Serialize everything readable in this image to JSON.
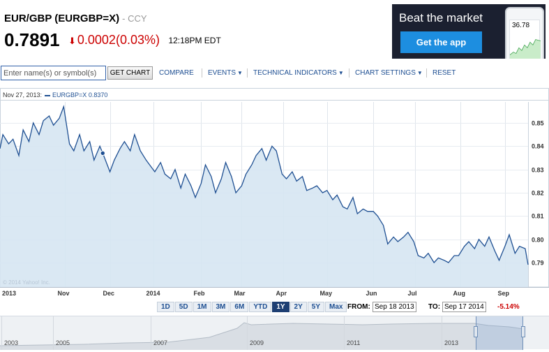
{
  "header": {
    "symbol_title": "EUR/GBP (EURGBP=X)",
    "exchange": "- CCY",
    "price": "0.7891",
    "change": "0.0002(0.03%)",
    "change_direction": "down",
    "time": "12:18PM EDT",
    "down_color": "#cc0000"
  },
  "ad": {
    "title": "Beat the market",
    "button": "Get the app",
    "phone_value": "36.78"
  },
  "toolbar": {
    "search_placeholder": "Enter name(s) or symbol(s)",
    "get_chart": "GET CHART",
    "compare": "COMPARE",
    "events": "EVENTS",
    "technical_indicators": "TECHNICAL INDICATORS",
    "chart_settings": "CHART SETTINGS",
    "reset": "RESET",
    "link_color": "#1e4f92"
  },
  "chart_legend": {
    "date": "Nov 27, 2013:",
    "series_label": "EURGBP=X 0.8370"
  },
  "watermark": "© 2014 Yahoo! Inc.",
  "chart_data": {
    "type": "area",
    "series": [
      {
        "name": "EURGBP=X",
        "color": "#1e4f92",
        "fill": "#d6e6f2",
        "points": [
          [
            "2013-09-17",
            0.839
          ],
          [
            "2013-09-19",
            0.845
          ],
          [
            "2013-09-23",
            0.841
          ],
          [
            "2013-09-26",
            0.843
          ],
          [
            "2013-09-30",
            0.836
          ],
          [
            "2013-10-03",
            0.847
          ],
          [
            "2013-10-07",
            0.842
          ],
          [
            "2013-10-10",
            0.85
          ],
          [
            "2013-10-14",
            0.845
          ],
          [
            "2013-10-17",
            0.851
          ],
          [
            "2013-10-21",
            0.853
          ],
          [
            "2013-10-24",
            0.849
          ],
          [
            "2013-10-28",
            0.852
          ],
          [
            "2013-10-31",
            0.857
          ],
          [
            "2013-11-04",
            0.841
          ],
          [
            "2013-11-07",
            0.838
          ],
          [
            "2013-11-11",
            0.845
          ],
          [
            "2013-11-14",
            0.838
          ],
          [
            "2013-11-18",
            0.842
          ],
          [
            "2013-11-21",
            0.834
          ],
          [
            "2013-11-25",
            0.84
          ],
          [
            "2013-11-27",
            0.837
          ],
          [
            "2013-12-02",
            0.829
          ],
          [
            "2013-12-05",
            0.834
          ],
          [
            "2013-12-09",
            0.839
          ],
          [
            "2013-12-12",
            0.842
          ],
          [
            "2013-12-16",
            0.838
          ],
          [
            "2013-12-19",
            0.845
          ],
          [
            "2013-12-23",
            0.838
          ],
          [
            "2013-12-27",
            0.834
          ],
          [
            "2014-01-02",
            0.829
          ],
          [
            "2014-01-06",
            0.833
          ],
          [
            "2014-01-09",
            0.828
          ],
          [
            "2014-01-13",
            0.826
          ],
          [
            "2014-01-16",
            0.83
          ],
          [
            "2014-01-20",
            0.822
          ],
          [
            "2014-01-23",
            0.828
          ],
          [
            "2014-01-27",
            0.823
          ],
          [
            "2014-01-30",
            0.818
          ],
          [
            "2014-02-03",
            0.824
          ],
          [
            "2014-02-06",
            0.832
          ],
          [
            "2014-02-10",
            0.827
          ],
          [
            "2014-02-13",
            0.82
          ],
          [
            "2014-02-17",
            0.826
          ],
          [
            "2014-02-20",
            0.833
          ],
          [
            "2014-02-24",
            0.827
          ],
          [
            "2014-02-27",
            0.82
          ],
          [
            "2014-03-03",
            0.823
          ],
          [
            "2014-03-06",
            0.828
          ],
          [
            "2014-03-10",
            0.832
          ],
          [
            "2014-03-13",
            0.836
          ],
          [
            "2014-03-17",
            0.839
          ],
          [
            "2014-03-20",
            0.834
          ],
          [
            "2014-03-24",
            0.84
          ],
          [
            "2014-03-27",
            0.838
          ],
          [
            "2014-03-31",
            0.828
          ],
          [
            "2014-04-03",
            0.826
          ],
          [
            "2014-04-07",
            0.829
          ],
          [
            "2014-04-10",
            0.825
          ],
          [
            "2014-04-14",
            0.827
          ],
          [
            "2014-04-17",
            0.821
          ],
          [
            "2014-04-21",
            0.822
          ],
          [
            "2014-04-24",
            0.823
          ],
          [
            "2014-04-28",
            0.82
          ],
          [
            "2014-05-01",
            0.821
          ],
          [
            "2014-05-05",
            0.817
          ],
          [
            "2014-05-08",
            0.819
          ],
          [
            "2014-05-12",
            0.814
          ],
          [
            "2014-05-15",
            0.813
          ],
          [
            "2014-05-19",
            0.818
          ],
          [
            "2014-05-22",
            0.811
          ],
          [
            "2014-05-26",
            0.813
          ],
          [
            "2014-05-29",
            0.812
          ],
          [
            "2014-06-02",
            0.812
          ],
          [
            "2014-06-05",
            0.81
          ],
          [
            "2014-06-09",
            0.806
          ],
          [
            "2014-06-12",
            0.798
          ],
          [
            "2014-06-16",
            0.801
          ],
          [
            "2014-06-19",
            0.799
          ],
          [
            "2014-06-23",
            0.801
          ],
          [
            "2014-06-26",
            0.803
          ],
          [
            "2014-06-30",
            0.799
          ],
          [
            "2014-07-03",
            0.793
          ],
          [
            "2014-07-07",
            0.792
          ],
          [
            "2014-07-10",
            0.794
          ],
          [
            "2014-07-14",
            0.79
          ],
          [
            "2014-07-17",
            0.792
          ],
          [
            "2014-07-21",
            0.791
          ],
          [
            "2014-07-24",
            0.79
          ],
          [
            "2014-07-28",
            0.793
          ],
          [
            "2014-07-31",
            0.793
          ],
          [
            "2014-08-04",
            0.797
          ],
          [
            "2014-08-07",
            0.799
          ],
          [
            "2014-08-11",
            0.796
          ],
          [
            "2014-08-14",
            0.8
          ],
          [
            "2014-08-18",
            0.797
          ],
          [
            "2014-08-21",
            0.801
          ],
          [
            "2014-08-25",
            0.795
          ],
          [
            "2014-08-28",
            0.791
          ],
          [
            "2014-09-01",
            0.797
          ],
          [
            "2014-09-04",
            0.802
          ],
          [
            "2014-09-08",
            0.794
          ],
          [
            "2014-09-11",
            0.797
          ],
          [
            "2014-09-15",
            0.796
          ],
          [
            "2014-09-17",
            0.7891
          ]
        ]
      }
    ],
    "highlight_point": [
      "2013-11-27",
      0.837
    ],
    "x_ticks": [
      {
        "label": "2013",
        "date": "2013-09-17"
      },
      {
        "label": "Nov",
        "date": "2013-11-01"
      },
      {
        "label": "Dec",
        "date": "2013-12-02"
      },
      {
        "label": "2014",
        "date": "2014-01-01"
      },
      {
        "label": "Feb",
        "date": "2014-02-03"
      },
      {
        "label": "Mar",
        "date": "2014-03-03"
      },
      {
        "label": "Apr",
        "date": "2014-04-01"
      },
      {
        "label": "May",
        "date": "2014-05-01"
      },
      {
        "label": "Jun",
        "date": "2014-06-02"
      },
      {
        "label": "Jul",
        "date": "2014-07-01"
      },
      {
        "label": "Aug",
        "date": "2014-08-01"
      },
      {
        "label": "Sep",
        "date": "2014-09-01"
      }
    ],
    "y_ticks": [
      "0.85",
      "0.84",
      "0.83",
      "0.82",
      "0.81",
      "0.80",
      "0.79"
    ],
    "ylim": [
      0.7795,
      0.859
    ],
    "grid": true,
    "legend": "top-left"
  },
  "range": {
    "buttons": [
      "1D",
      "5D",
      "1M",
      "3M",
      "6M",
      "YTD",
      "1Y",
      "2Y",
      "5Y",
      "Max"
    ],
    "active": "1Y",
    "from_label": "FROM:",
    "from_date": "Sep 18 2013",
    "to_label": "TO:",
    "to_date": "Sep 17 2014",
    "change": "-5.14%"
  },
  "navigator": {
    "years": [
      "2003",
      "2005",
      "2007",
      "2009",
      "2011",
      "2013"
    ]
  }
}
